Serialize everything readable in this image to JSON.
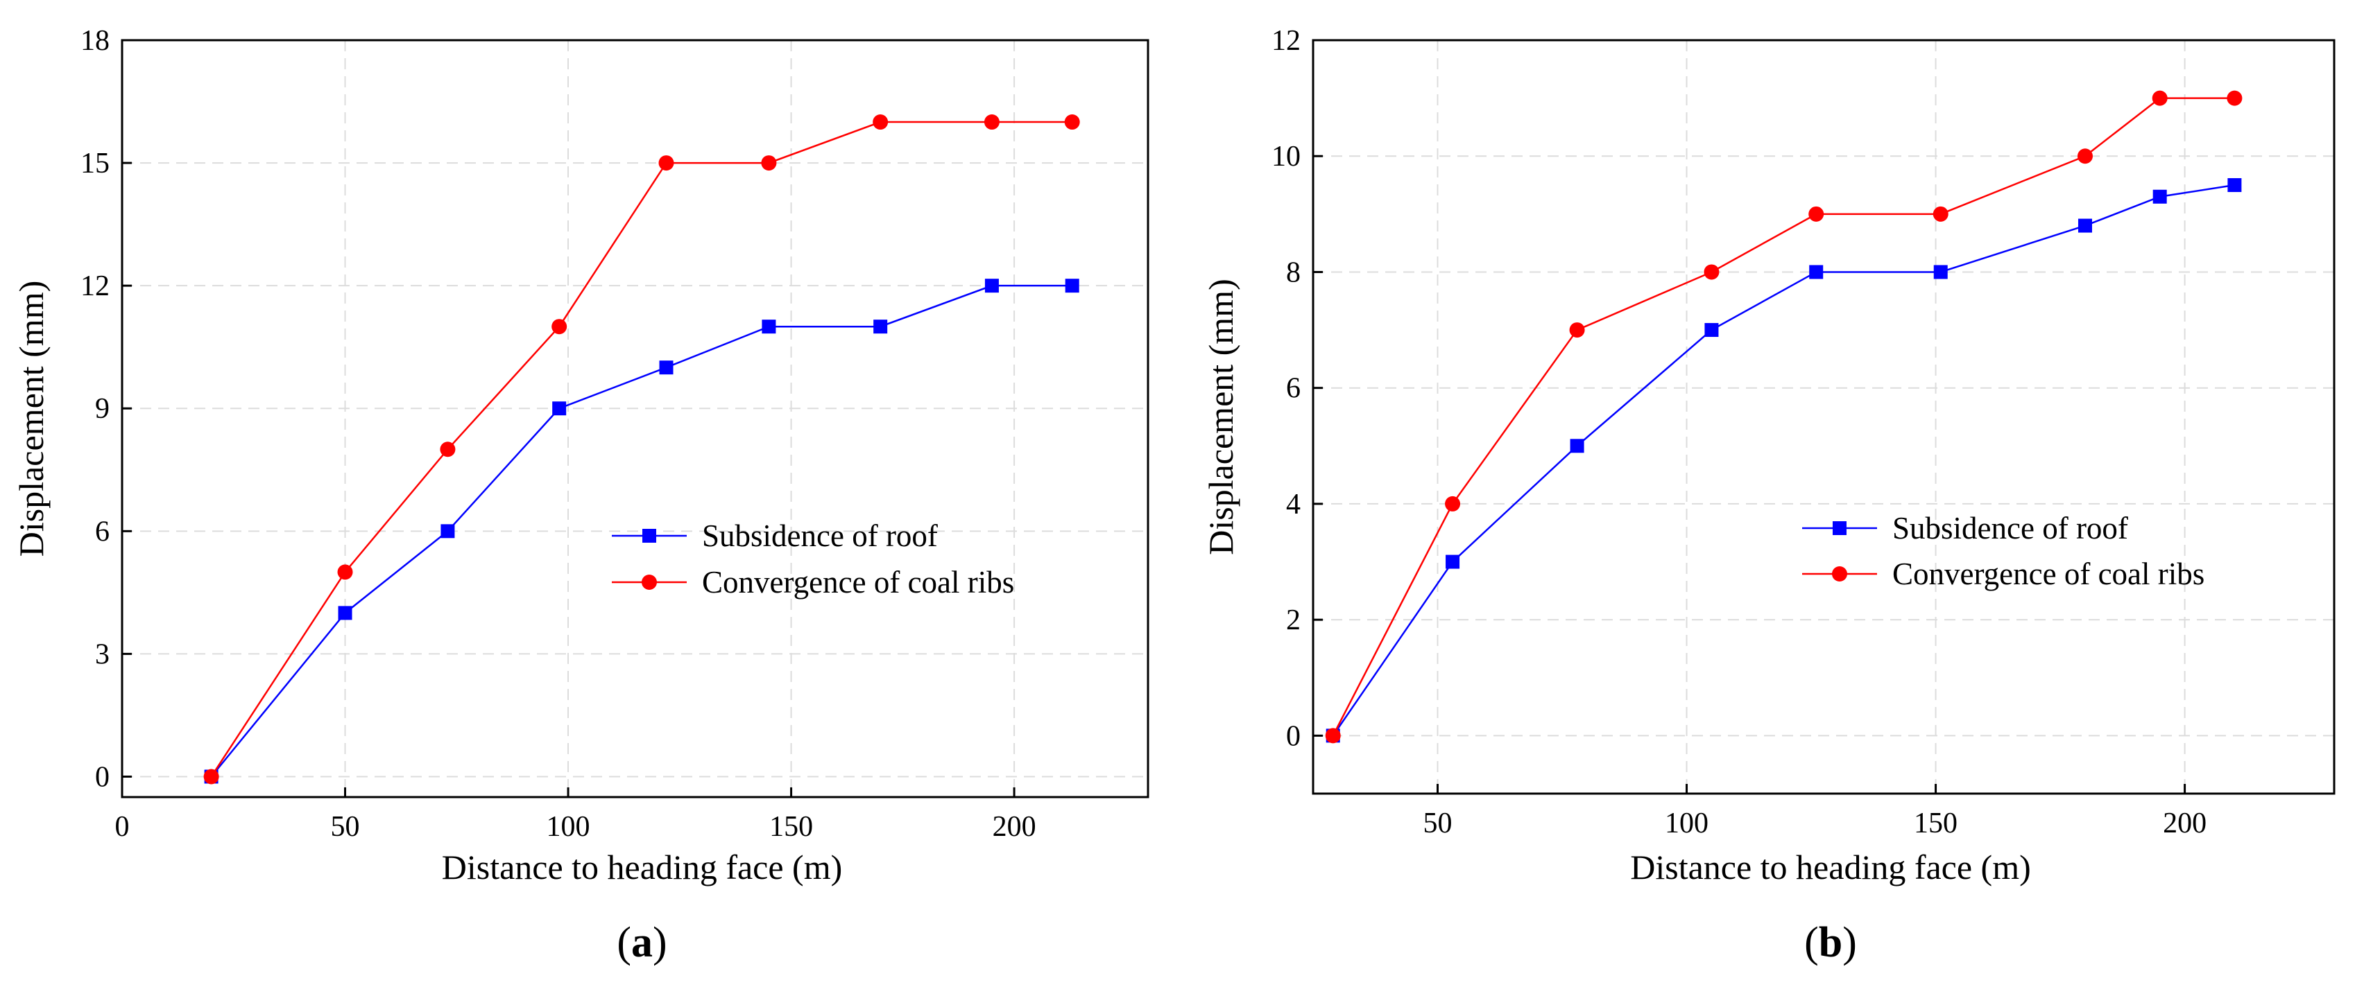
{
  "chart_data": [
    {
      "type": "line",
      "panel_label": "a",
      "xlabel": "Distance to heading face (m)",
      "ylabel": "Displacement (mm)",
      "xlim": [
        0,
        230
      ],
      "ylim": [
        -0.5,
        18
      ],
      "xticks": [
        0,
        50,
        100,
        150,
        200
      ],
      "yticks": [
        0,
        3,
        6,
        9,
        12,
        15,
        18
      ],
      "grid": true,
      "legend_position": "center-right",
      "series": [
        {
          "name": "Subsidence of roof",
          "color": "#0000ff",
          "marker": "square",
          "x": [
            20,
            50,
            73,
            98,
            122,
            145,
            170,
            195,
            213
          ],
          "y": [
            0,
            4,
            6,
            9,
            10,
            11,
            11,
            12,
            12
          ]
        },
        {
          "name": "Convergence of coal ribs",
          "color": "#ff0000",
          "marker": "circle",
          "x": [
            20,
            50,
            73,
            98,
            122,
            145,
            170,
            195,
            213
          ],
          "y": [
            0,
            5,
            8,
            11,
            15,
            15,
            16,
            16,
            16
          ]
        }
      ]
    },
    {
      "type": "line",
      "panel_label": "b",
      "xlabel": "Distance to heading face (m)",
      "ylabel": "Displacement (mm)",
      "xlim": [
        25,
        230
      ],
      "ylim": [
        -1,
        12
      ],
      "xticks": [
        50,
        100,
        150,
        200
      ],
      "yticks": [
        0,
        2,
        4,
        6,
        8,
        10,
        12
      ],
      "grid": true,
      "legend_position": "center-right",
      "series": [
        {
          "name": "Subsidence of roof",
          "color": "#0000ff",
          "marker": "square",
          "x": [
            29,
            53,
            78,
            105,
            126,
            151,
            180,
            195,
            210
          ],
          "y": [
            0,
            3,
            5,
            7,
            8,
            8,
            8.8,
            9.3,
            9.5
          ]
        },
        {
          "name": "Convergence of coal ribs",
          "color": "#ff0000",
          "marker": "circle",
          "x": [
            29,
            53,
            78,
            105,
            126,
            151,
            180,
            195,
            210
          ],
          "y": [
            0,
            4,
            7,
            8,
            9,
            9,
            10,
            11,
            11
          ]
        }
      ]
    }
  ]
}
